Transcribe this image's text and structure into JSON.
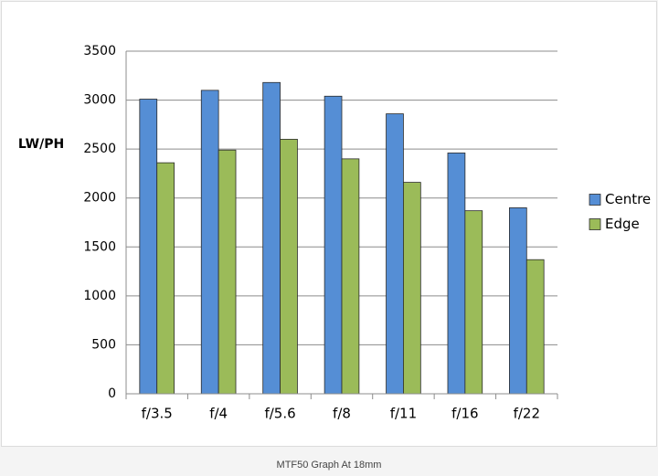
{
  "chart_data": {
    "type": "bar",
    "caption": "MTF50 Graph At 18mm",
    "y_label": "LW/PH",
    "categories": [
      "f/3.5",
      "f/4",
      "f/5.6",
      "f/8",
      "f/11",
      "f/16",
      "f/22"
    ],
    "series": [
      {
        "name": "Centre",
        "color": "#558ed5",
        "values": [
          3010,
          3100,
          3180,
          3040,
          2860,
          2460,
          1900
        ]
      },
      {
        "name": "Edge",
        "color": "#9bbb59",
        "values": [
          2360,
          2490,
          2600,
          2400,
          2160,
          1870,
          1370
        ]
      }
    ],
    "ylim": [
      0,
      3500
    ],
    "yticks": [
      0,
      500,
      1000,
      1500,
      2000,
      2500,
      3000,
      3500
    ],
    "grid": true,
    "legend": "right"
  }
}
